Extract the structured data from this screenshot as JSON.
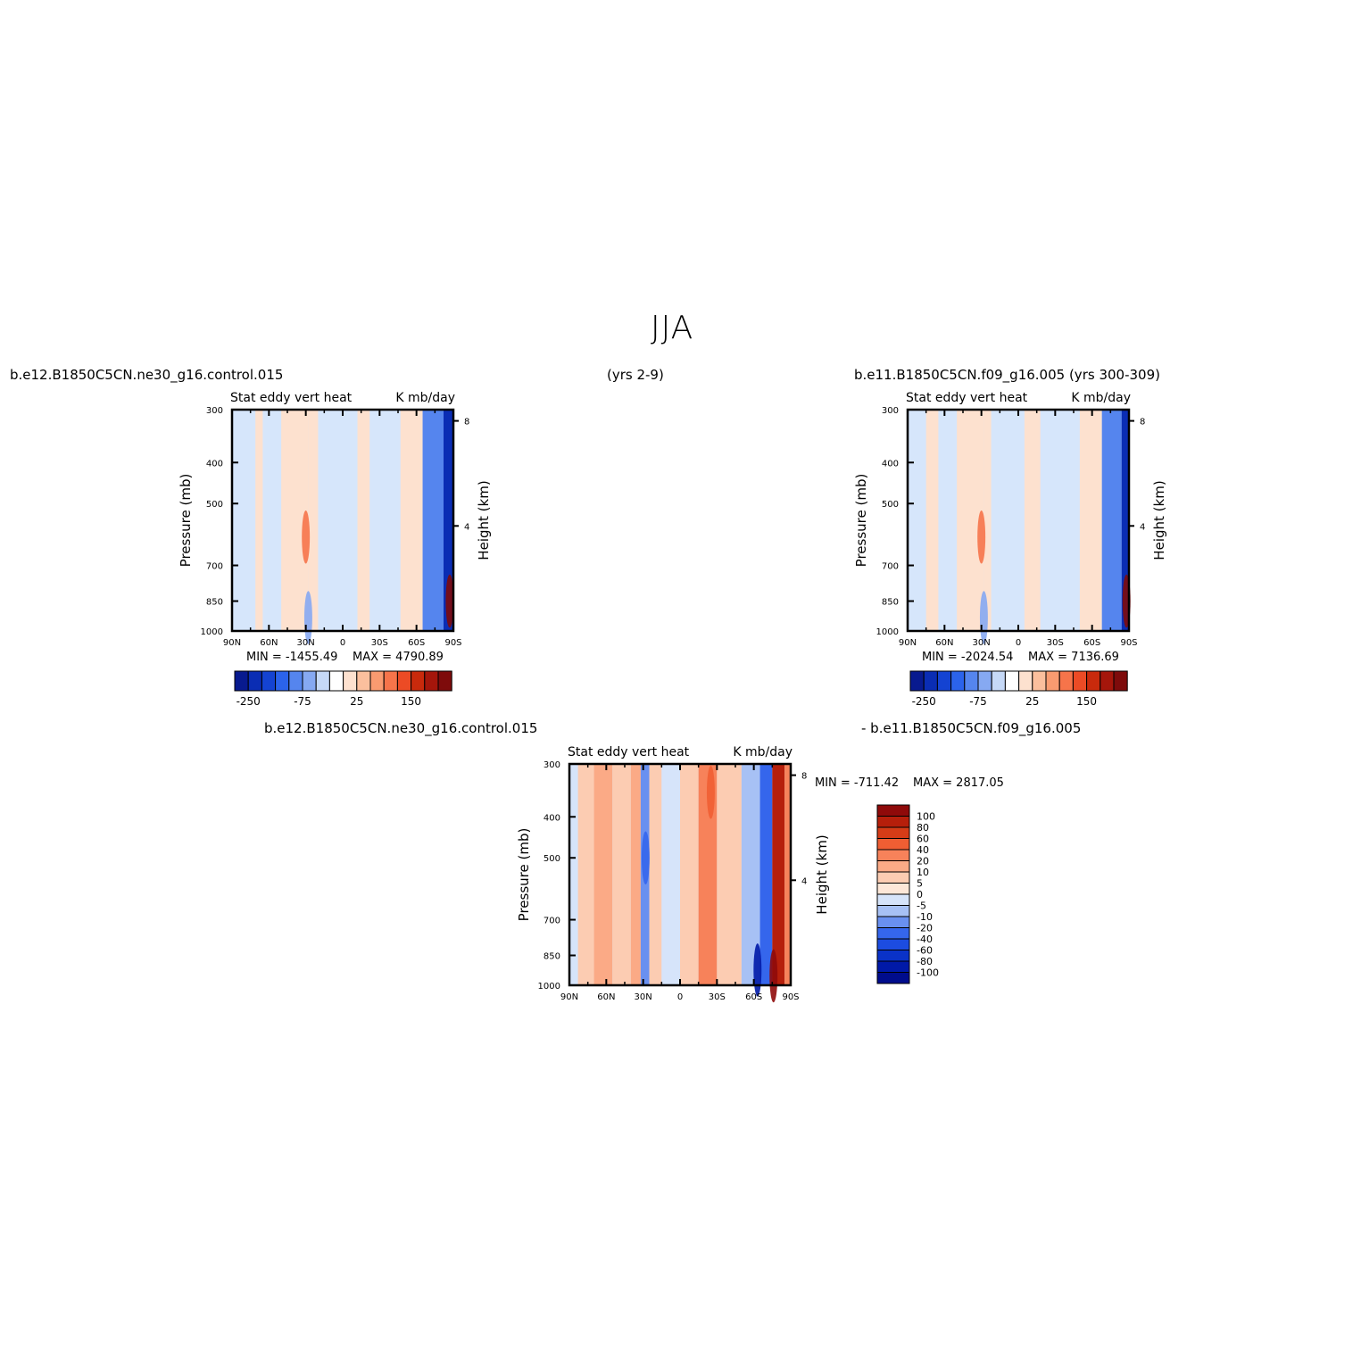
{
  "figure": {
    "title": "JJA",
    "case1_label": "b.e12.B1850C5CN.ne30_g16.control.015",
    "case1_years": "(yrs 2-9)",
    "case2_label": "b.e11.B1850C5CN.f09_g16.005 (yrs 300-309)",
    "diff_label_left": "b.e12.B1850C5CN.ne30_g16.control.015",
    "diff_label_right": "- b.e11.B1850C5CN.f09_g16.005"
  },
  "colors": {
    "main_scale": [
      "#081a8f",
      "#0a2db4",
      "#1443d2",
      "#2b63eb",
      "#5585ee",
      "#86a9f2",
      "#c6d9f7",
      "#ffffff",
      "#fde1cf",
      "#fbbf9d",
      "#f99b70",
      "#f6744a",
      "#ec4b25",
      "#c92a0c",
      "#a5160b",
      "#7e0b0b"
    ],
    "diff_scale": [
      "#000c8c",
      "#0019a8",
      "#0a32c8",
      "#1c4ce0",
      "#3566ec",
      "#6990f0",
      "#a7c1f5",
      "#d6e4fa",
      "#fde7d8",
      "#fcccb2",
      "#fbaa86",
      "#f7825a",
      "#ef5e33",
      "#d53c17",
      "#b61f0b",
      "#8f0a0a"
    ],
    "background_field": "#d6e6fb"
  },
  "chart_data": [
    {
      "type": "heatmap",
      "id": "panel-left",
      "subtitle_left": "Stat eddy vert heat",
      "subtitle_right": "K mb/day",
      "ylabel": "Pressure (mb)",
      "ylabel_right": "Height (km)",
      "x_ticks": [
        "90N",
        "60N",
        "30N",
        "0",
        "30S",
        "60S",
        "90S"
      ],
      "x_values": [
        90,
        60,
        30,
        0,
        -30,
        -60,
        -90
      ],
      "xlim": [
        90,
        -90
      ],
      "y_ticks": [
        300,
        400,
        500,
        700,
        850,
        1000
      ],
      "ylim": [
        1000,
        300
      ],
      "y_log_scale": true,
      "height_ticks": [
        "8",
        "4"
      ],
      "height_km": [
        8,
        4
      ],
      "min_label": "MIN = -1455.49",
      "max_label": "MAX = 4790.89",
      "min": -1455.49,
      "max": 4790.89,
      "colorbar_orientation": "horizontal",
      "colorbar_labels": [
        "-250",
        "-75",
        "25",
        "150"
      ],
      "bands": [
        {
          "lat": [
            90,
            71
          ],
          "value": -10
        },
        {
          "lat": [
            71,
            65
          ],
          "value": 10
        },
        {
          "lat": [
            65,
            50
          ],
          "value": -10
        },
        {
          "lat": [
            50,
            28
          ],
          "value": 10
        },
        {
          "lat": [
            28,
            20
          ],
          "value": 5
        },
        {
          "lat": [
            20,
            -12
          ],
          "value": -10
        },
        {
          "lat": [
            -12,
            -22
          ],
          "value": 10
        },
        {
          "lat": [
            -22,
            -47
          ],
          "value": -10
        },
        {
          "lat": [
            -47,
            -65
          ],
          "value": 10
        },
        {
          "lat": [
            -65,
            -82
          ],
          "value": -100
        },
        {
          "lat": [
            -82,
            -90
          ],
          "value": -250
        }
      ],
      "features": [
        {
          "lat": 30,
          "p": 600,
          "value": 75
        },
        {
          "lat": 28,
          "p": 930,
          "value": -75
        },
        {
          "lat": -87,
          "p": 850,
          "value": 250
        }
      ]
    },
    {
      "type": "heatmap",
      "id": "panel-right",
      "subtitle_left": "Stat eddy vert heat",
      "subtitle_right": "K mb/day",
      "ylabel": "Pressure (mb)",
      "ylabel_right": "Height (km)",
      "x_ticks": [
        "90N",
        "60N",
        "30N",
        "0",
        "30S",
        "60S",
        "90S"
      ],
      "x_values": [
        90,
        60,
        30,
        0,
        -30,
        -60,
        -90
      ],
      "xlim": [
        90,
        -90
      ],
      "y_ticks": [
        300,
        400,
        500,
        700,
        850,
        1000
      ],
      "ylim": [
        1000,
        300
      ],
      "y_log_scale": true,
      "height_ticks": [
        "8",
        "4"
      ],
      "height_km": [
        8,
        4
      ],
      "min_label": "MIN = -2024.54",
      "max_label": "MAX = 7136.69",
      "min": -2024.54,
      "max": 7136.69,
      "colorbar_orientation": "horizontal",
      "colorbar_labels": [
        "-250",
        "-75",
        "25",
        "150"
      ],
      "bands": [
        {
          "lat": [
            90,
            75
          ],
          "value": -10
        },
        {
          "lat": [
            75,
            65
          ],
          "value": 10
        },
        {
          "lat": [
            65,
            50
          ],
          "value": -10
        },
        {
          "lat": [
            50,
            28
          ],
          "value": 10
        },
        {
          "lat": [
            28,
            22
          ],
          "value": 5
        },
        {
          "lat": [
            22,
            -5
          ],
          "value": -10
        },
        {
          "lat": [
            -5,
            -18
          ],
          "value": 10
        },
        {
          "lat": [
            -18,
            -50
          ],
          "value": -10
        },
        {
          "lat": [
            -50,
            -68
          ],
          "value": 10
        },
        {
          "lat": [
            -68,
            -84
          ],
          "value": -100
        },
        {
          "lat": [
            -84,
            -90
          ],
          "value": -250
        }
      ],
      "features": [
        {
          "lat": 30,
          "p": 600,
          "value": 75
        },
        {
          "lat": 28,
          "p": 930,
          "value": -75
        },
        {
          "lat": -88,
          "p": 850,
          "value": 250
        }
      ]
    },
    {
      "type": "heatmap",
      "id": "panel-diff",
      "subtitle_left": "Stat eddy vert heat",
      "subtitle_right": "K mb/day",
      "ylabel": "Pressure (mb)",
      "ylabel_right": "Height (km)",
      "x_ticks": [
        "90N",
        "60N",
        "30N",
        "0",
        "30S",
        "60S",
        "90S"
      ],
      "x_values": [
        90,
        60,
        30,
        0,
        -30,
        -60,
        -90
      ],
      "xlim": [
        90,
        -90
      ],
      "y_ticks": [
        300,
        400,
        500,
        700,
        850,
        1000
      ],
      "ylim": [
        1000,
        300
      ],
      "y_log_scale": true,
      "height_ticks": [
        "8",
        "4"
      ],
      "height_km": [
        8,
        4
      ],
      "min_label": "MIN = -711.42",
      "max_label": "MAX = 2817.05",
      "min": -711.42,
      "max": 2817.05,
      "colorbar_orientation": "vertical",
      "colorbar_labels": [
        "100",
        "80",
        "60",
        "40",
        "20",
        "10",
        "5",
        "0",
        "-5",
        "-10",
        "-20",
        "-40",
        "-60",
        "-80",
        "-100"
      ],
      "bands": [
        {
          "lat": [
            90,
            83
          ],
          "value": -5
        },
        {
          "lat": [
            83,
            70
          ],
          "value": 5
        },
        {
          "lat": [
            70,
            55
          ],
          "value": 10
        },
        {
          "lat": [
            55,
            40
          ],
          "value": 5
        },
        {
          "lat": [
            40,
            32
          ],
          "value": 10
        },
        {
          "lat": [
            32,
            25
          ],
          "value": -20
        },
        {
          "lat": [
            25,
            15
          ],
          "value": 5
        },
        {
          "lat": [
            15,
            0
          ],
          "value": -5
        },
        {
          "lat": [
            0,
            -15
          ],
          "value": 5
        },
        {
          "lat": [
            -15,
            -30
          ],
          "value": 20
        },
        {
          "lat": [
            -30,
            -50
          ],
          "value": 5
        },
        {
          "lat": [
            -50,
            -65
          ],
          "value": -10
        },
        {
          "lat": [
            -65,
            -75
          ],
          "value": -40
        },
        {
          "lat": [
            -75,
            -85
          ],
          "value": 80
        },
        {
          "lat": [
            -85,
            -90
          ],
          "value": 20
        }
      ],
      "features": [
        {
          "lat": -76,
          "p": 950,
          "value": 100
        },
        {
          "lat": -63,
          "p": 920,
          "value": -100
        },
        {
          "lat": 28,
          "p": 500,
          "value": -40
        },
        {
          "lat": -25,
          "p": 350,
          "value": 40
        }
      ]
    }
  ]
}
